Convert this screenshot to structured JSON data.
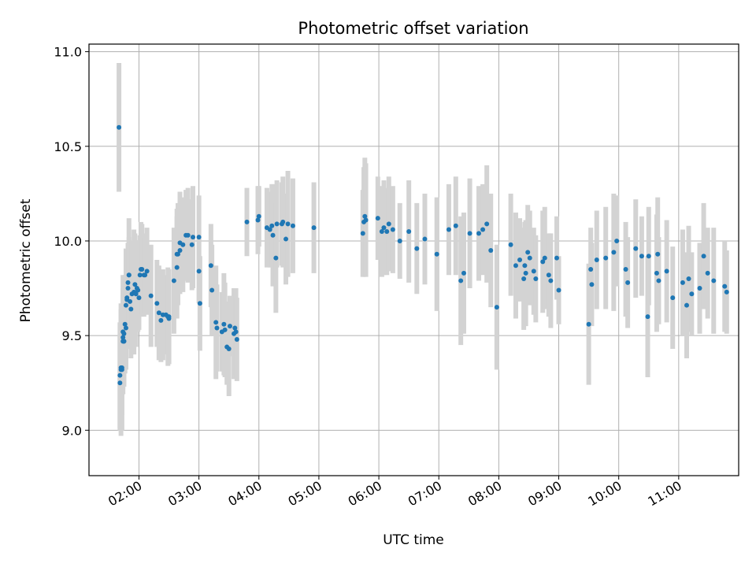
{
  "chart_data": {
    "type": "scatter",
    "title": "Photometric offset variation",
    "xlabel": "UTC time",
    "ylabel": "Photometric offset",
    "xlim": [
      "01:10",
      "12:00"
    ],
    "ylim": [
      8.76,
      11.04
    ],
    "grid": true,
    "x_ticks": [
      "02:00",
      "03:00",
      "04:00",
      "05:00",
      "06:00",
      "07:00",
      "08:00",
      "09:00",
      "10:00",
      "11:00"
    ],
    "y_ticks": [
      "9.0",
      "9.5",
      "10.0",
      "10.5",
      "11.0"
    ],
    "colors": {
      "points": "#1f77b4",
      "error_bars": "#d3d3d3",
      "grid": "#b0b0b0"
    },
    "series": [
      {
        "x": [
          "01:40",
          "01:41",
          "01:41",
          "01:42",
          "01:42",
          "01:43",
          "01:43",
          "01:44",
          "01:44",
          "01:44",
          "01:45",
          "01:45",
          "01:45",
          "01:46",
          "01:47",
          "01:47",
          "01:48",
          "01:48",
          "01:49",
          "01:49",
          "01:50",
          "01:50",
          "01:51",
          "01:52",
          "01:53",
          "01:55",
          "01:56",
          "01:57",
          "01:58",
          "01:59",
          "02:00",
          "02:01",
          "02:02",
          "02:03",
          "02:05",
          "02:06",
          "02:08",
          "02:12",
          "02:18",
          "02:20",
          "02:22",
          "02:24",
          "02:27",
          "02:29",
          "02:30",
          "02:30",
          "02:35",
          "02:38",
          "02:38",
          "02:39",
          "02:41",
          "02:41",
          "02:44",
          "02:47",
          "02:49",
          "02:53",
          "02:54",
          "03:00",
          "03:00",
          "03:01",
          "03:12",
          "03:13",
          "03:17",
          "03:18",
          "03:23",
          "03:25",
          "03:26",
          "03:28",
          "03:30",
          "03:31",
          "03:35",
          "03:36",
          "03:37",
          "03:38",
          "03:48",
          "03:59",
          "04:00",
          "04:08",
          "04:11",
          "04:13",
          "04:14",
          "04:17",
          "04:18",
          "04:23",
          "04:24",
          "04:27",
          "04:29",
          "04:34",
          "04:55",
          "05:44",
          "05:45",
          "05:46",
          "05:47",
          "05:59",
          "06:03",
          "06:05",
          "06:08",
          "06:10",
          "06:14",
          "06:21",
          "06:30",
          "06:38",
          "06:46",
          "06:58",
          "07:10",
          "07:17",
          "07:22",
          "07:25",
          "07:31",
          "07:40",
          "07:44",
          "07:48",
          "07:52",
          "07:58",
          "08:12",
          "08:17",
          "08:21",
          "08:25",
          "08:26",
          "08:27",
          "08:29",
          "08:31",
          "08:35",
          "08:37",
          "08:44",
          "08:46",
          "08:50",
          "08:52",
          "08:58",
          "09:00",
          "09:30",
          "09:32",
          "09:33",
          "09:38",
          "09:47",
          "09:55",
          "09:58",
          "10:07",
          "10:09",
          "10:17",
          "10:23",
          "10:29",
          "10:30",
          "10:38",
          "10:39",
          "10:40",
          "10:48",
          "10:54",
          "11:04",
          "11:08",
          "11:10",
          "11:13",
          "11:21",
          "11:25",
          "11:29",
          "11:35",
          "11:46",
          "11:48"
        ],
        "y": [
          10.6,
          9.25,
          9.29,
          9.33,
          9.32,
          9.32,
          9.33,
          9.52,
          9.47,
          9.49,
          9.51,
          9.47,
          9.47,
          9.56,
          9.54,
          9.66,
          9.7,
          9.69,
          9.78,
          9.75,
          9.82,
          9.82,
          9.68,
          9.64,
          9.72,
          9.73,
          9.77,
          9.72,
          9.75,
          9.74,
          9.7,
          9.82,
          9.85,
          9.85,
          9.82,
          9.82,
          9.84,
          9.71,
          9.67,
          9.62,
          9.58,
          9.61,
          9.61,
          9.6,
          9.6,
          9.59,
          9.79,
          9.86,
          9.93,
          9.93,
          9.95,
          9.99,
          9.98,
          10.03,
          10.03,
          9.98,
          10.02,
          10.02,
          9.84,
          9.67,
          9.87,
          9.74,
          9.57,
          9.54,
          9.52,
          9.56,
          9.53,
          9.44,
          9.43,
          9.55,
          9.51,
          9.54,
          9.52,
          9.48,
          10.1,
          10.11,
          10.13,
          10.07,
          10.06,
          10.08,
          10.03,
          9.91,
          10.09,
          10.09,
          10.1,
          10.01,
          10.09,
          10.08,
          10.07,
          10.04,
          10.1,
          10.13,
          10.11,
          10.12,
          10.05,
          10.07,
          10.05,
          10.09,
          10.06,
          10.0,
          10.05,
          9.96,
          10.01,
          9.93,
          10.06,
          10.08,
          9.79,
          9.83,
          10.04,
          10.04,
          10.06,
          10.09,
          9.95,
          9.65,
          9.98,
          9.87,
          9.9,
          9.8,
          9.87,
          9.83,
          9.94,
          9.91,
          9.84,
          9.8,
          9.89,
          9.91,
          9.82,
          9.79,
          9.91,
          9.74,
          9.56,
          9.85,
          9.77,
          9.9,
          9.91,
          9.94,
          10.0,
          9.85,
          9.78,
          9.96,
          9.92,
          9.6,
          9.92,
          9.83,
          9.93,
          9.79,
          9.84,
          9.7,
          9.78,
          9.66,
          9.8,
          9.72,
          9.75,
          9.92,
          9.83,
          9.79,
          9.76,
          9.73
        ],
        "yerr": [
          0.34,
          0.25,
          0.28,
          0.31,
          0.35,
          0.32,
          0.25,
          0.3,
          0.28,
          0.22,
          0.27,
          0.2,
          0.24,
          0.26,
          0.22,
          0.3,
          0.25,
          0.26,
          0.2,
          0.24,
          0.3,
          0.2,
          0.22,
          0.26,
          0.28,
          0.33,
          0.27,
          0.28,
          0.21,
          0.22,
          0.17,
          0.21,
          0.25,
          0.24,
          0.22,
          0.2,
          0.23,
          0.27,
          0.23,
          0.25,
          0.22,
          0.24,
          0.21,
          0.26,
          0.25,
          0.24,
          0.28,
          0.27,
          0.24,
          0.27,
          0.23,
          0.27,
          0.25,
          0.24,
          0.25,
          0.24,
          0.27,
          0.22,
          0.17,
          0.25,
          0.22,
          0.24,
          0.3,
          0.23,
          0.21,
          0.27,
          0.25,
          0.2,
          0.25,
          0.16,
          0.24,
          0.2,
          0.23,
          0.22,
          0.18,
          0.18,
          0.16,
          0.21,
          0.2,
          0.22,
          0.27,
          0.29,
          0.23,
          0.22,
          0.24,
          0.24,
          0.28,
          0.25,
          0.24,
          0.23,
          0.29,
          0.31,
          0.3,
          0.22,
          0.24,
          0.25,
          0.23,
          0.25,
          0.23,
          0.2,
          0.27,
          0.24,
          0.24,
          0.3,
          0.24,
          0.26,
          0.34,
          0.32,
          0.29,
          0.25,
          0.24,
          0.31,
          0.3,
          0.33,
          0.27,
          0.28,
          0.22,
          0.27,
          0.23,
          0.28,
          0.25,
          0.25,
          0.23,
          0.23,
          0.27,
          0.27,
          0.22,
          0.25,
          0.22,
          0.18,
          0.32,
          0.22,
          0.22,
          0.26,
          0.27,
          0.31,
          0.24,
          0.25,
          0.24,
          0.26,
          0.21,
          0.32,
          0.26,
          0.31,
          0.3,
          0.23,
          0.27,
          0.27,
          0.28,
          0.28,
          0.28,
          0.22,
          0.24,
          0.28,
          0.24,
          0.28,
          0.24,
          0.22
        ]
      }
    ]
  }
}
